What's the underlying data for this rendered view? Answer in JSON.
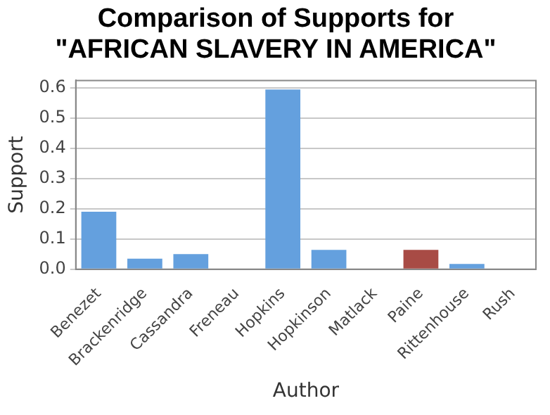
{
  "chart_data": {
    "type": "bar",
    "title": "Comparison of Supports for \"AFRICAN SLAVERY IN AMERICA\"",
    "xlabel": "Author",
    "ylabel": "Support",
    "categories": [
      "Benezet",
      "Brackenridge",
      "Cassandra",
      "Freneau",
      "Hopkins",
      "Hopkinson",
      "Matlack",
      "Paine",
      "Rittenhouse",
      "Rush"
    ],
    "values": [
      0.19,
      0.035,
      0.05,
      0,
      0.595,
      0.064,
      0,
      0.064,
      0.017,
      0
    ],
    "colors": [
      "#64a0de",
      "#64a0de",
      "#64a0de",
      "#64a0de",
      "#64a0de",
      "#64a0de",
      "#64a0de",
      "#a84b45",
      "#64a0de",
      "#64a0de"
    ],
    "ylim": [
      0,
      0.625
    ],
    "yticks": [
      {
        "value": 0,
        "label": "0.0"
      },
      0.1,
      0.2,
      0.3,
      0.4,
      0.5,
      0.6
    ],
    "grid": "y"
  }
}
